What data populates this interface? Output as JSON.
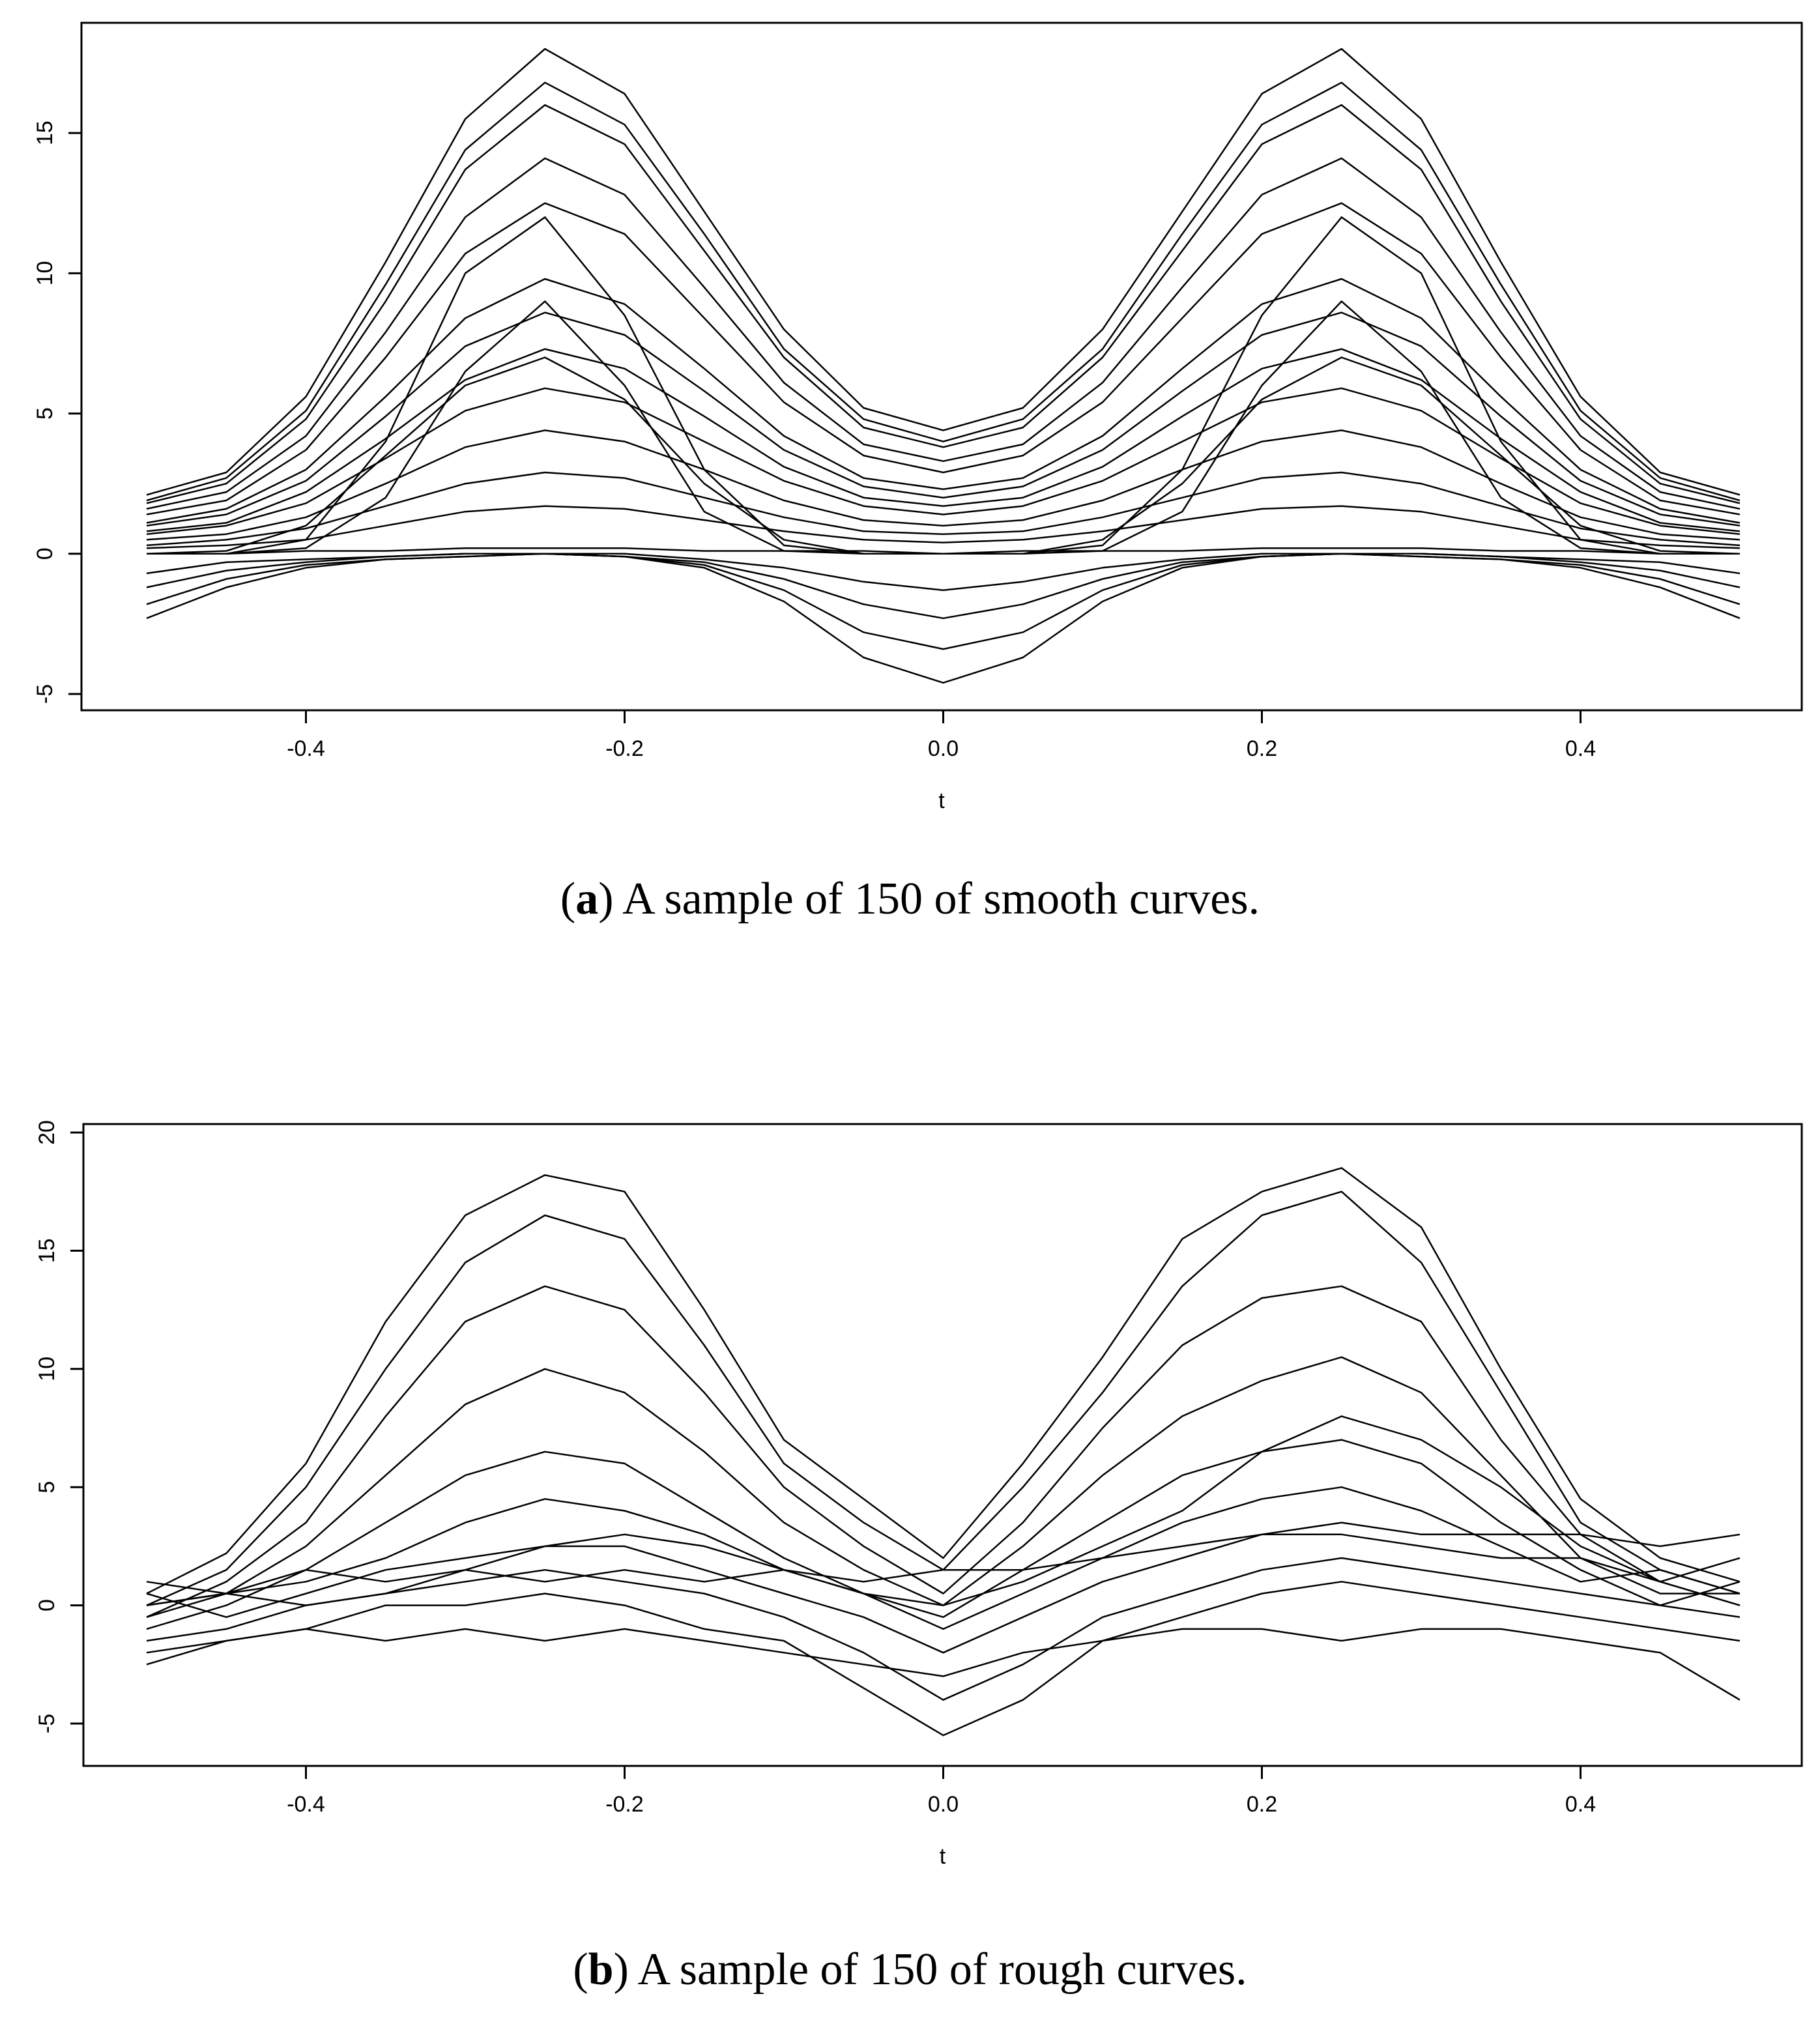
{
  "captions": [
    {
      "letter": "a",
      "open": "(",
      "close": ")",
      "text": " A sample of 150 of smooth curves."
    },
    {
      "letter": "b",
      "open": "(",
      "close": ")",
      "text": " A sample of 150 of rough curves."
    }
  ],
  "chart_data": [
    {
      "type": "line",
      "title": "",
      "xlabel": "t",
      "ylabel": "",
      "xlim": [
        -0.5,
        0.5
      ],
      "ylim": [
        -5,
        18
      ],
      "x_ticks": [
        -0.4,
        -0.2,
        0.0,
        0.2,
        0.4
      ],
      "x_tick_labels": [
        "-0.4",
        "-0.2",
        "0.0",
        "0.2",
        "0.4"
      ],
      "y_ticks": [
        -5,
        0,
        5,
        10,
        15
      ],
      "y_tick_labels": [
        "-5",
        "0",
        "5",
        "10",
        "15"
      ],
      "grid": false,
      "legend": "none",
      "line_color": "#000000",
      "n_curves": 150,
      "x": [
        -0.5,
        -0.45,
        -0.4,
        -0.35,
        -0.3,
        -0.25,
        -0.2,
        -0.15,
        -0.1,
        -0.05,
        0.0,
        0.05,
        0.1,
        0.15,
        0.2,
        0.25,
        0.3,
        0.35,
        0.4,
        0.45,
        0.5
      ],
      "series": [
        {
          "values": [
            2.1,
            2.9,
            5.6,
            10.4,
            15.5,
            18.0,
            16.4,
            12.2,
            8.0,
            5.2,
            4.4,
            5.2,
            8.0,
            12.2,
            16.4,
            18.0,
            15.5,
            10.4,
            5.6,
            2.9,
            2.1
          ]
        },
        {
          "values": [
            1.9,
            2.7,
            5.1,
            9.6,
            14.4,
            16.8,
            15.3,
            11.4,
            7.3,
            4.8,
            4.0,
            4.8,
            7.3,
            11.4,
            15.3,
            16.8,
            14.4,
            9.6,
            5.1,
            2.7,
            1.9
          ]
        },
        {
          "values": [
            1.8,
            2.5,
            4.8,
            9.0,
            13.7,
            16.0,
            14.6,
            10.8,
            7.0,
            4.5,
            3.8,
            4.5,
            7.0,
            10.8,
            14.6,
            16.0,
            13.7,
            9.0,
            4.8,
            2.5,
            1.8
          ]
        },
        {
          "values": [
            1.6,
            2.2,
            4.2,
            7.9,
            12.0,
            14.1,
            12.8,
            9.5,
            6.1,
            3.9,
            3.3,
            3.9,
            6.1,
            9.5,
            12.8,
            14.1,
            12.0,
            7.9,
            4.2,
            2.2,
            1.6
          ]
        },
        {
          "values": [
            1.4,
            1.9,
            3.7,
            7.0,
            10.7,
            12.5,
            11.4,
            8.4,
            5.4,
            3.5,
            2.9,
            3.5,
            5.4,
            8.4,
            11.4,
            12.5,
            10.7,
            7.0,
            3.7,
            1.9,
            1.4
          ]
        },
        {
          "values": [
            1.1,
            1.6,
            3.0,
            5.6,
            8.4,
            9.8,
            8.9,
            6.6,
            4.2,
            2.7,
            2.3,
            2.7,
            4.2,
            6.6,
            8.9,
            9.8,
            8.4,
            5.6,
            3.0,
            1.6,
            1.1
          ]
        },
        {
          "values": [
            1.0,
            1.4,
            2.6,
            4.9,
            7.4,
            8.6,
            7.8,
            5.8,
            3.7,
            2.4,
            2.0,
            2.4,
            3.7,
            5.8,
            7.8,
            8.6,
            7.4,
            4.9,
            2.6,
            1.4,
            1.0
          ]
        },
        {
          "values": [
            0.8,
            1.1,
            2.2,
            4.1,
            6.2,
            7.3,
            6.6,
            4.9,
            3.1,
            2.0,
            1.7,
            2.0,
            3.1,
            4.9,
            6.6,
            7.3,
            6.2,
            4.1,
            2.2,
            1.1,
            0.8
          ]
        },
        {
          "values": [
            0.7,
            1.0,
            1.8,
            3.4,
            5.1,
            5.9,
            5.4,
            4.0,
            2.6,
            1.7,
            1.4,
            1.7,
            2.6,
            4.0,
            5.4,
            5.9,
            5.1,
            3.4,
            1.8,
            1.0,
            0.7
          ]
        },
        {
          "values": [
            0.5,
            0.7,
            1.3,
            2.5,
            3.8,
            4.4,
            4.0,
            3.0,
            1.9,
            1.2,
            1.0,
            1.2,
            1.9,
            3.0,
            4.0,
            4.4,
            3.8,
            2.5,
            1.3,
            0.7,
            0.5
          ]
        },
        {
          "values": [
            0.3,
            0.5,
            0.9,
            1.7,
            2.5,
            2.9,
            2.7,
            2.0,
            1.3,
            0.8,
            0.7,
            0.8,
            1.3,
            2.0,
            2.7,
            2.9,
            2.5,
            1.7,
            0.9,
            0.5,
            0.3
          ]
        },
        {
          "values": [
            0.2,
            0.3,
            0.5,
            1.0,
            1.5,
            1.7,
            1.6,
            1.2,
            0.8,
            0.5,
            0.4,
            0.5,
            0.8,
            1.2,
            1.6,
            1.7,
            1.5,
            1.0,
            0.5,
            0.3,
            0.2
          ]
        },
        {
          "values": [
            0.0,
            0.0,
            0.1,
            0.1,
            0.2,
            0.2,
            0.2,
            0.1,
            0.1,
            0.1,
            0.0,
            0.1,
            0.1,
            0.1,
            0.2,
            0.2,
            0.2,
            0.1,
            0.1,
            0.0,
            0.0
          ]
        },
        {
          "values": [
            -0.7,
            -0.3,
            -0.2,
            -0.1,
            0.0,
            0.0,
            0.0,
            -0.2,
            -0.5,
            -1.0,
            -1.3,
            -1.0,
            -0.5,
            -0.2,
            0.0,
            0.0,
            0.0,
            -0.1,
            -0.2,
            -0.3,
            -0.7
          ]
        },
        {
          "values": [
            -1.2,
            -0.6,
            -0.3,
            -0.1,
            0.0,
            0.0,
            -0.1,
            -0.3,
            -0.9,
            -1.8,
            -2.3,
            -1.8,
            -0.9,
            -0.3,
            -0.1,
            0.0,
            0.0,
            -0.1,
            -0.3,
            -0.6,
            -1.2
          ]
        },
        {
          "values": [
            -1.8,
            -0.9,
            -0.4,
            -0.2,
            -0.1,
            0.0,
            -0.1,
            -0.4,
            -1.3,
            -2.8,
            -3.4,
            -2.8,
            -1.3,
            -0.4,
            -0.1,
            0.0,
            -0.1,
            -0.2,
            -0.4,
            -0.9,
            -1.8
          ]
        },
        {
          "values": [
            -2.3,
            -1.2,
            -0.5,
            -0.2,
            -0.1,
            0.0,
            -0.1,
            -0.5,
            -1.7,
            -3.7,
            -4.6,
            -3.7,
            -1.7,
            -0.5,
            -0.1,
            0.0,
            -0.1,
            -0.2,
            -0.5,
            -1.2,
            -2.3
          ]
        },
        {
          "values": [
            0.0,
            0.1,
            1.0,
            3.5,
            6.0,
            7.0,
            5.5,
            2.5,
            0.5,
            0.0,
            0.0,
            0.0,
            0.5,
            2.5,
            5.5,
            7.0,
            6.0,
            3.5,
            1.0,
            0.1,
            0.0
          ]
        },
        {
          "values": [
            0.0,
            0.0,
            0.5,
            4.0,
            10.0,
            12.0,
            8.5,
            3.0,
            0.3,
            0.0,
            0.0,
            0.0,
            0.3,
            3.0,
            8.5,
            12.0,
            10.0,
            4.0,
            0.5,
            0.0,
            0.0
          ]
        },
        {
          "values": [
            0.0,
            0.0,
            0.2,
            2.0,
            6.5,
            9.0,
            6.0,
            1.5,
            0.1,
            0.0,
            0.0,
            0.0,
            0.1,
            1.5,
            6.0,
            9.0,
            6.5,
            2.0,
            0.2,
            0.0,
            0.0
          ]
        }
      ]
    },
    {
      "type": "line",
      "title": "",
      "xlabel": "t",
      "ylabel": "",
      "xlim": [
        -0.5,
        0.5
      ],
      "ylim": [
        -6,
        19
      ],
      "x_ticks": [
        -0.4,
        -0.2,
        0.0,
        0.2,
        0.4
      ],
      "x_tick_labels": [
        "-0.4",
        "-0.2",
        "0.0",
        "0.2",
        "0.4"
      ],
      "y_ticks": [
        -5,
        0,
        5,
        10,
        15,
        20
      ],
      "y_tick_labels": [
        "-5",
        "0",
        "5",
        "10",
        "15",
        "20"
      ],
      "grid": false,
      "legend": "none",
      "line_color": "#000000",
      "n_curves": 150,
      "x": [
        -0.5,
        -0.45,
        -0.4,
        -0.35,
        -0.3,
        -0.25,
        -0.2,
        -0.15,
        -0.1,
        -0.05,
        0.0,
        0.05,
        0.1,
        0.15,
        0.2,
        0.25,
        0.3,
        0.35,
        0.4,
        0.45,
        0.5
      ],
      "series": [
        {
          "values": [
            0.5,
            2.2,
            6.0,
            12.0,
            16.5,
            18.2,
            17.5,
            12.5,
            7.0,
            4.5,
            2.0,
            6.0,
            10.5,
            15.5,
            17.5,
            18.5,
            16.0,
            10.0,
            4.5,
            2.0,
            1.0
          ]
        },
        {
          "values": [
            0.0,
            1.5,
            5.0,
            10.0,
            14.5,
            16.5,
            15.5,
            11.0,
            6.0,
            3.5,
            1.5,
            5.0,
            9.0,
            13.5,
            16.5,
            17.5,
            14.5,
            9.0,
            3.5,
            1.5,
            0.5
          ]
        },
        {
          "values": [
            -0.5,
            1.0,
            3.5,
            8.0,
            12.0,
            13.5,
            12.5,
            9.0,
            5.0,
            2.5,
            0.5,
            3.5,
            7.5,
            11.0,
            13.0,
            13.5,
            12.0,
            7.0,
            3.0,
            1.0,
            0.0
          ]
        },
        {
          "values": [
            0.0,
            0.5,
            2.5,
            5.5,
            8.5,
            10.0,
            9.0,
            6.5,
            3.5,
            1.5,
            0.0,
            2.5,
            5.5,
            8.0,
            9.5,
            10.5,
            9.0,
            5.5,
            2.0,
            0.5,
            0.5
          ]
        },
        {
          "values": [
            -1.0,
            0.0,
            1.5,
            3.5,
            5.5,
            6.5,
            6.0,
            4.0,
            2.0,
            0.5,
            -0.5,
            1.5,
            3.5,
            5.5,
            6.5,
            7.0,
            6.0,
            3.5,
            1.5,
            0.0,
            1.0
          ]
        },
        {
          "values": [
            -0.5,
            0.5,
            1.0,
            2.0,
            3.5,
            4.5,
            4.0,
            3.0,
            1.5,
            0.5,
            -1.0,
            0.5,
            2.0,
            3.5,
            4.5,
            5.0,
            4.0,
            2.5,
            1.0,
            1.5,
            0.5
          ]
        },
        {
          "values": [
            0.5,
            -0.5,
            0.5,
            1.5,
            2.0,
            2.5,
            2.5,
            1.5,
            0.5,
            -0.5,
            -2.0,
            -0.5,
            1.0,
            2.0,
            3.0,
            3.0,
            2.5,
            2.0,
            2.0,
            1.0,
            2.0
          ]
        },
        {
          "values": [
            -1.5,
            -1.0,
            0.0,
            0.5,
            1.0,
            1.5,
            1.0,
            0.5,
            -0.5,
            -2.0,
            -4.0,
            -2.5,
            -0.5,
            0.5,
            1.5,
            2.0,
            1.5,
            1.0,
            0.5,
            0.0,
            -0.5
          ]
        },
        {
          "values": [
            -2.5,
            -1.5,
            -1.0,
            0.0,
            0.0,
            0.5,
            0.0,
            -1.0,
            -1.5,
            -3.5,
            -5.5,
            -4.0,
            -1.5,
            -0.5,
            0.5,
            1.0,
            0.5,
            0.0,
            -0.5,
            -1.0,
            -1.5
          ]
        },
        {
          "values": [
            1.0,
            0.5,
            1.5,
            1.0,
            1.5,
            1.0,
            1.5,
            1.0,
            1.5,
            1.0,
            1.5,
            1.5,
            2.0,
            2.5,
            3.0,
            3.5,
            3.0,
            3.0,
            3.0,
            2.5,
            3.0
          ]
        },
        {
          "values": [
            -2.0,
            -1.5,
            -1.0,
            -1.5,
            -1.0,
            -1.5,
            -1.0,
            -1.5,
            -2.0,
            -2.5,
            -3.0,
            -2.0,
            -1.5,
            -1.0,
            -1.0,
            -1.5,
            -1.0,
            -1.0,
            -1.5,
            -2.0,
            -4.0
          ]
        },
        {
          "values": [
            0.0,
            0.5,
            0.0,
            0.5,
            1.5,
            2.5,
            3.0,
            2.5,
            1.5,
            0.5,
            0.0,
            1.0,
            2.5,
            4.0,
            6.5,
            8.0,
            7.0,
            5.0,
            2.5,
            1.0,
            0.0
          ]
        }
      ]
    }
  ]
}
